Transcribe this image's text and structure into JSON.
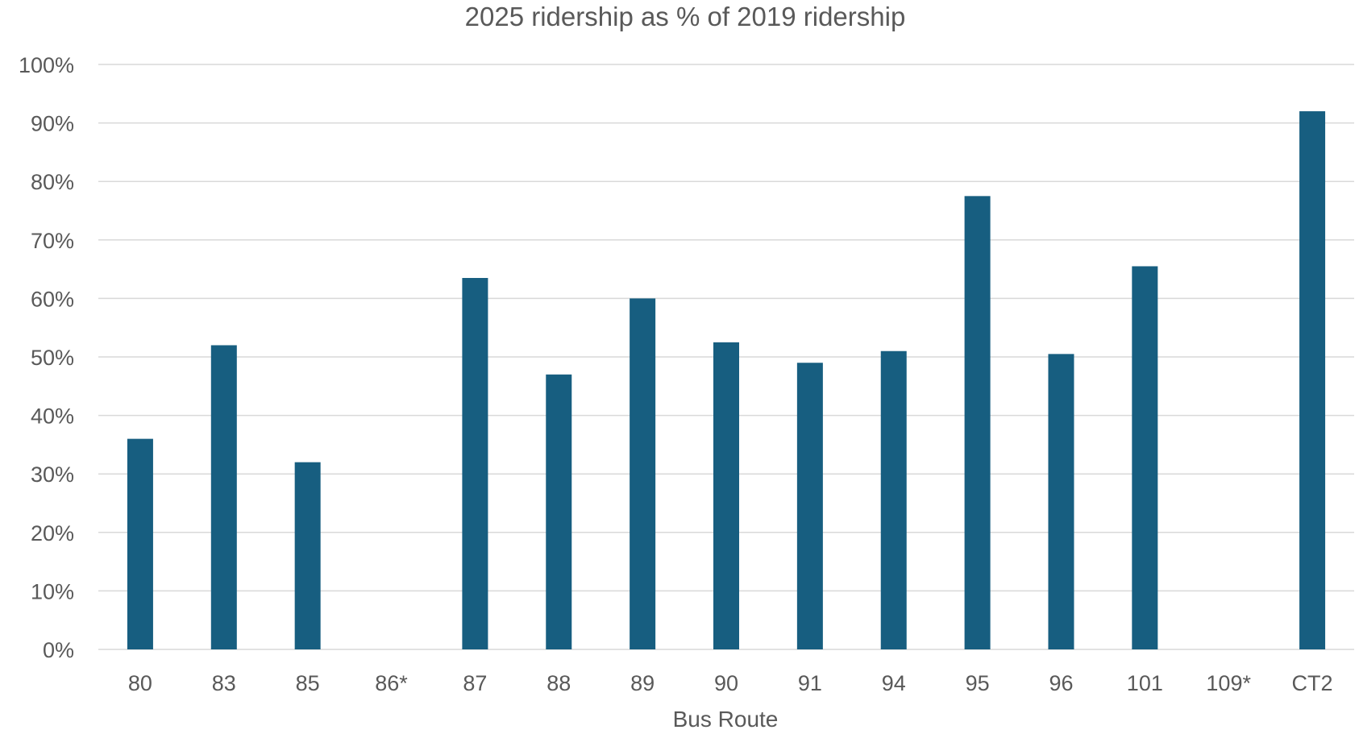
{
  "chart_data": {
    "type": "bar",
    "title": "2025 ridership as % of 2019 ridership",
    "xlabel": "Bus Route",
    "ylabel": "",
    "categories": [
      "80",
      "83",
      "85",
      "86*",
      "87",
      "88",
      "89",
      "90",
      "91",
      "94",
      "95",
      "96",
      "101",
      "109*",
      "CT2"
    ],
    "values": [
      36,
      52,
      32,
      null,
      63.5,
      47,
      60,
      52.5,
      49,
      51,
      77.5,
      50.5,
      65.5,
      null,
      92
    ],
    "ylim": [
      0,
      100
    ],
    "yticks": [
      0,
      10,
      20,
      30,
      40,
      50,
      60,
      70,
      80,
      90,
      100
    ],
    "ytick_labels": [
      "0%",
      "10%",
      "20%",
      "30%",
      "40%",
      "50%",
      "60%",
      "70%",
      "80%",
      "90%",
      "100%"
    ],
    "grid": true,
    "legend": "none",
    "bar_color": "#175e80"
  }
}
